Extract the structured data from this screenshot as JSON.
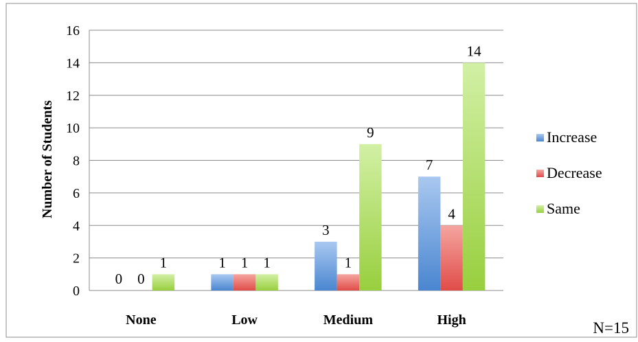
{
  "chart_data": {
    "type": "bar",
    "categories": [
      "None",
      "Low",
      "Medium",
      "High"
    ],
    "series": [
      {
        "name": "Increase",
        "values": [
          0,
          1,
          3,
          7
        ],
        "color": "#4f81bd"
      },
      {
        "name": "Decrease",
        "values": [
          0,
          1,
          1,
          4
        ],
        "color": "#e15050"
      },
      {
        "name": "Same",
        "values": [
          1,
          1,
          9,
          14
        ],
        "color": "#9bd239"
      }
    ],
    "ylabel": "Number of Students",
    "ylim": [
      0,
      16
    ],
    "yticks": [
      0,
      2,
      4,
      6,
      8,
      10,
      12,
      14,
      16
    ],
    "grid": true,
    "legend": "right",
    "note": "N=15"
  }
}
